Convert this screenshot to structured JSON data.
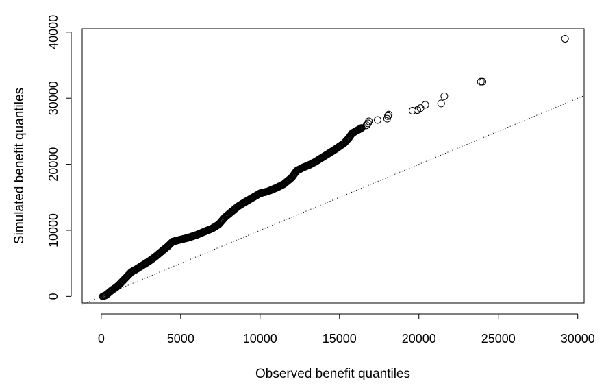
{
  "chart_data": {
    "type": "scatter",
    "title": "",
    "xlabel": "Observed benefit quantiles",
    "ylabel": "Simulated benefit quantiles",
    "xlim": [
      -1200,
      30400
    ],
    "ylim": [
      -1000,
      40500
    ],
    "x_ticks": [
      0,
      5000,
      10000,
      15000,
      20000,
      25000,
      30000
    ],
    "y_ticks": [
      0,
      10000,
      20000,
      30000,
      40000
    ],
    "x_tick_labels": [
      "0",
      "5000",
      "10000",
      "15000",
      "20000",
      "25000",
      "30000"
    ],
    "y_tick_labels": [
      "0",
      "10000",
      "20000",
      "30000",
      "40000"
    ],
    "marker": "open-circle",
    "reference_line": {
      "style": "dotted",
      "from": [
        -1200,
        -1200
      ],
      "to": [
        30400,
        30400
      ]
    },
    "grid": false,
    "legend": "none",
    "series": [
      {
        "points": [
          [
            100,
            0
          ],
          [
            300,
            200
          ],
          [
            500,
            600
          ],
          [
            700,
            1000
          ],
          [
            900,
            1300
          ],
          [
            1100,
            1700
          ],
          [
            1300,
            2200
          ],
          [
            1500,
            2700
          ],
          [
            1700,
            3200
          ],
          [
            1900,
            3700
          ],
          [
            2200,
            4100
          ],
          [
            2600,
            4700
          ],
          [
            3000,
            5300
          ],
          [
            3400,
            6000
          ],
          [
            3800,
            6800
          ],
          [
            4200,
            7600
          ],
          [
            4500,
            8300
          ],
          [
            5000,
            8600
          ],
          [
            5500,
            8900
          ],
          [
            6000,
            9300
          ],
          [
            6500,
            9800
          ],
          [
            7000,
            10300
          ],
          [
            7400,
            10900
          ],
          [
            7800,
            12000
          ],
          [
            8200,
            12800
          ],
          [
            8600,
            13600
          ],
          [
            9000,
            14200
          ],
          [
            9500,
            14900
          ],
          [
            10000,
            15600
          ],
          [
            10500,
            15900
          ],
          [
            11000,
            16400
          ],
          [
            11500,
            17000
          ],
          [
            12000,
            18000
          ],
          [
            12300,
            19000
          ],
          [
            12700,
            19500
          ],
          [
            13100,
            19900
          ],
          [
            13500,
            20400
          ],
          [
            13900,
            21000
          ],
          [
            14300,
            21600
          ],
          [
            14700,
            22200
          ],
          [
            15000,
            22700
          ],
          [
            15300,
            23200
          ],
          [
            15600,
            24000
          ],
          [
            15800,
            24700
          ],
          [
            16100,
            25100
          ],
          [
            16400,
            25500
          ],
          [
            16700,
            25900
          ],
          [
            16800,
            26200
          ],
          [
            16850,
            26500
          ],
          [
            17400,
            26700
          ],
          [
            18000,
            26900
          ],
          [
            18050,
            27300
          ],
          [
            18100,
            27500
          ],
          [
            19600,
            28100
          ],
          [
            19900,
            28200
          ],
          [
            20100,
            28500
          ],
          [
            20400,
            29000
          ],
          [
            21400,
            29200
          ],
          [
            21600,
            30300
          ],
          [
            23900,
            32500
          ],
          [
            24000,
            32500
          ],
          [
            29200,
            39000
          ]
        ]
      }
    ]
  }
}
